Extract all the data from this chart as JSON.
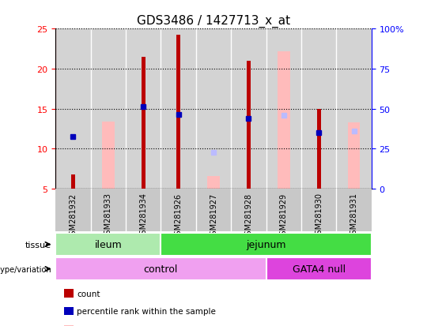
{
  "title": "GDS3486 / 1427713_x_at",
  "samples": [
    "GSM281932",
    "GSM281933",
    "GSM281934",
    "GSM281926",
    "GSM281927",
    "GSM281928",
    "GSM281929",
    "GSM281930",
    "GSM281931"
  ],
  "count_values": [
    6.8,
    null,
    21.5,
    24.2,
    null,
    21.0,
    null,
    15.0,
    null
  ],
  "percentile_rank": [
    11.5,
    null,
    15.3,
    14.3,
    null,
    13.8,
    null,
    12.0,
    null
  ],
  "absent_value": [
    null,
    13.4,
    null,
    null,
    6.6,
    null,
    22.2,
    null,
    13.3
  ],
  "absent_rank": [
    null,
    null,
    null,
    null,
    9.5,
    null,
    14.2,
    null,
    12.2
  ],
  "ylim_left": [
    5,
    25
  ],
  "ylim_right": [
    0,
    100
  ],
  "yticks_left": [
    5,
    10,
    15,
    20,
    25
  ],
  "yticks_right": [
    0,
    25,
    50,
    75,
    100
  ],
  "yticklabels_right": [
    "0",
    "25",
    "50",
    "75",
    "100%"
  ],
  "tissue_groups": [
    {
      "label": "ileum",
      "start": 0,
      "end": 2,
      "color": "#aeeaae"
    },
    {
      "label": "jejunum",
      "start": 3,
      "end": 8,
      "color": "#44dd44"
    }
  ],
  "genotype_groups": [
    {
      "label": "control",
      "start": 0,
      "end": 5,
      "color": "#f0a0f0"
    },
    {
      "label": "GATA4 null",
      "start": 6,
      "end": 8,
      "color": "#dd44dd"
    }
  ],
  "color_count": "#bb0000",
  "color_rank": "#0000bb",
  "color_absent_value": "#ffbbbb",
  "color_absent_rank": "#bbbbff",
  "count_bar_width": 0.12,
  "absent_bar_width": 0.35
}
